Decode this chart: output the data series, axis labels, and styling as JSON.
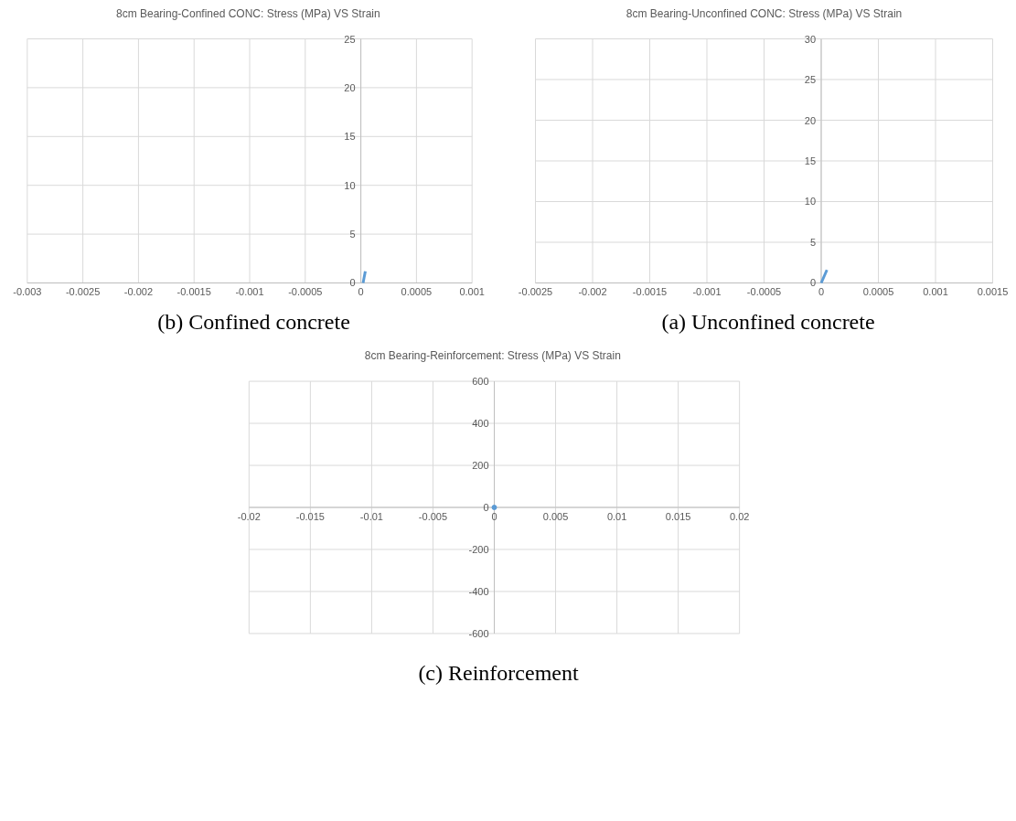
{
  "chart_data": [
    {
      "type": "line",
      "title": "8cm Bearing-Confined  CONC: Stress (MPa) VS Strain",
      "x": [
        2e-05,
        4e-05
      ],
      "values": [
        0,
        1.2
      ],
      "color": "#5b9bd5",
      "xlim": [
        -0.003,
        0.001
      ],
      "xticks": [
        -0.003,
        -0.0025,
        -0.002,
        -0.0015,
        -0.001,
        -0.0005,
        0,
        0.0005,
        0.001
      ],
      "ylim": [
        0,
        25
      ],
      "yticks": [
        0,
        5,
        10,
        15,
        20,
        25
      ],
      "grid": true,
      "marker": "none",
      "annotations": [
        "(b)  Confined concrete"
      ]
    },
    {
      "type": "line",
      "title": "8cm Bearing-Unconfined CONC: Stress (MPa) VS Strain",
      "x": [
        0,
        5e-05
      ],
      "values": [
        0,
        1.6
      ],
      "color": "#5b9bd5",
      "xlim": [
        -0.0025,
        0.0015
      ],
      "xticks": [
        -0.0025,
        -0.002,
        -0.0015,
        -0.001,
        -0.0005,
        0,
        0.0005,
        0.001,
        0.0015
      ],
      "ylim": [
        0,
        30
      ],
      "yticks": [
        0,
        5,
        10,
        15,
        20,
        25,
        30
      ],
      "grid": true,
      "marker": "none",
      "annotations": [
        "(a)  Unconfined concrete"
      ]
    },
    {
      "type": "scatter",
      "title": "8cm Bearing-Reinforcement:  Stress (MPa) VS Strain",
      "x": [
        0
      ],
      "values": [
        0
      ],
      "color": "#5b9bd5",
      "xlim": [
        -0.02,
        0.02
      ],
      "xticks": [
        -0.02,
        -0.015,
        -0.01,
        -0.005,
        0,
        0.005,
        0.01,
        0.015,
        0.02
      ],
      "ylim": [
        -600,
        600
      ],
      "yticks": [
        -600,
        -400,
        -200,
        0,
        200,
        400,
        600
      ],
      "grid": true,
      "marker": "circle",
      "annotations": [
        "(c)  Reinforcement"
      ]
    }
  ]
}
